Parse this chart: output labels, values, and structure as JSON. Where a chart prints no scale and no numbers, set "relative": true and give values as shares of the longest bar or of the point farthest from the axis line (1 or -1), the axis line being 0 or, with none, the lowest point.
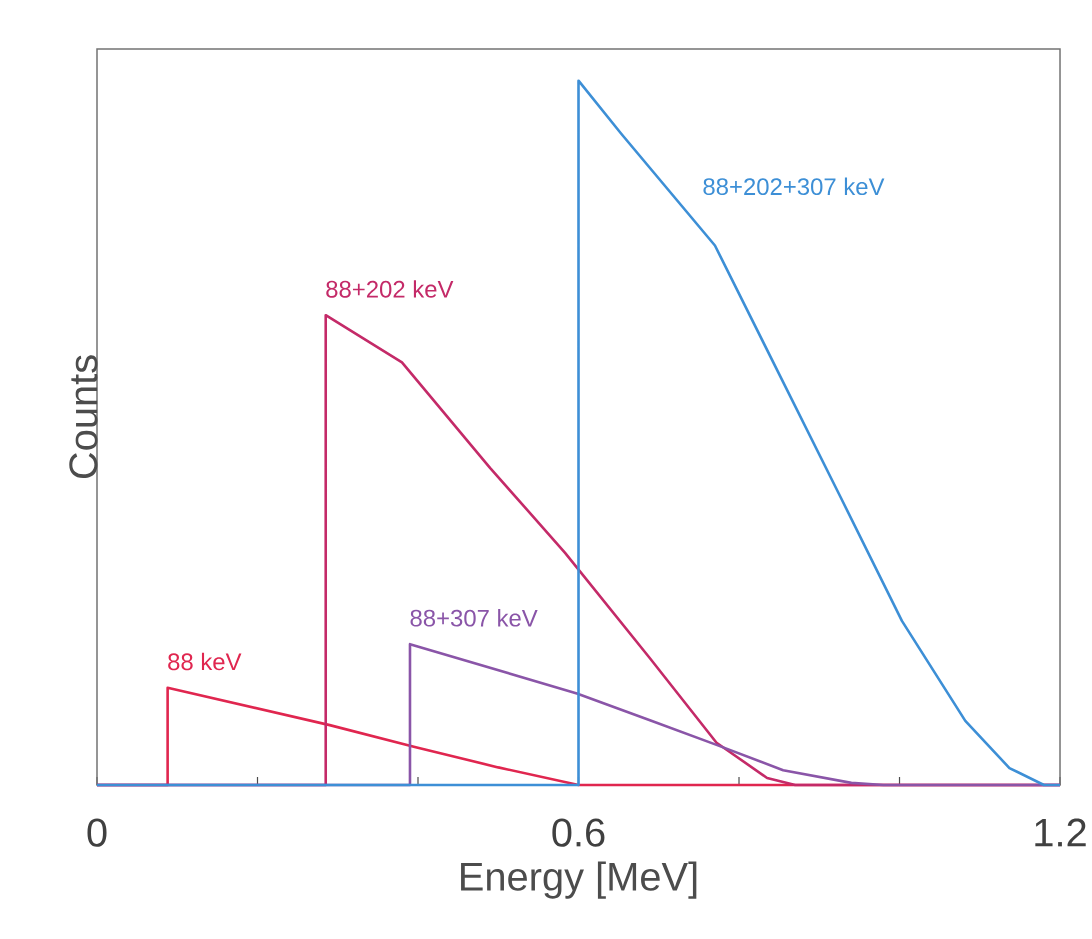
{
  "chart_data": {
    "type": "line",
    "relative": true,
    "xlabel": "Energy [MeV]",
    "ylabel": "Counts",
    "xlim": [
      0,
      1.2
    ],
    "xticks": [
      0,
      {
        "value": 0.2,
        "label": null
      },
      {
        "value": 0.4,
        "label": null
      },
      0.6,
      {
        "value": 0.8,
        "label": null
      },
      {
        "value": 1.0,
        "label": null
      },
      1.2
    ],
    "series": [
      {
        "name": "88 keV",
        "color": "#e0264f",
        "x": [
          0,
          0.088,
          0.088,
          0.29,
          0.396,
          0.5,
          0.6,
          1.2
        ],
        "values": [
          0,
          0,
          0.138,
          0.085,
          0.054,
          0.025,
          0,
          0
        ]
      },
      {
        "name": "88+202 keV",
        "color": "#c42a68",
        "x": [
          0,
          0.285,
          0.285,
          0.38,
          0.49,
          0.583,
          0.689,
          0.772,
          0.835,
          0.87,
          1.2
        ],
        "values": [
          0,
          0,
          0.667,
          0.6,
          0.45,
          0.33,
          0.18,
          0.06,
          0.01,
          0,
          0
        ]
      },
      {
        "name": "88+307 keV",
        "color": "#8a55a8",
        "x": [
          0,
          0.39,
          0.39,
          0.598,
          0.689,
          0.772,
          0.855,
          0.94,
          0.98,
          1.2
        ],
        "values": [
          0,
          0,
          0.2,
          0.13,
          0.092,
          0.057,
          0.021,
          0.003,
          0,
          0
        ]
      },
      {
        "name": "88+202+307 keV",
        "color": "#3d8fd6",
        "x": [
          0,
          0.6,
          0.6,
          0.653,
          0.77,
          0.848,
          0.926,
          1.003,
          1.082,
          1.137,
          1.18,
          1.2
        ],
        "values": [
          0,
          0,
          1.0,
          0.925,
          0.766,
          0.588,
          0.41,
          0.233,
          0.091,
          0.024,
          0,
          0
        ]
      }
    ]
  }
}
